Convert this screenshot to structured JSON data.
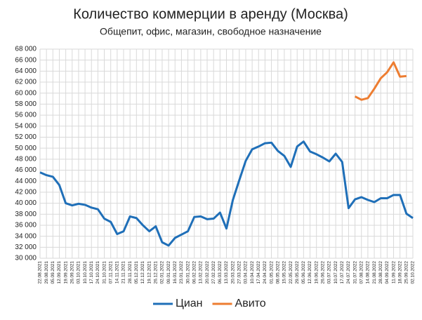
{
  "chart_data": {
    "type": "line",
    "title": "Количество коммерции в аренду (Москва)",
    "subtitle": "Общепит, офис, магазин, свободное назначение",
    "x": [
      "22.08.2021",
      "29.08.2021",
      "05.09.2021",
      "12.09.2021",
      "19.09.2021",
      "26.09.2021",
      "03.10.2021",
      "10.10.2021",
      "17.10.2021",
      "24.10.2021",
      "31.10.2021",
      "07.11.2021",
      "14.11.2021",
      "21.11.2021",
      "28.11.2021",
      "05.12.2021",
      "12.12.2021",
      "19.12.2021",
      "26.12.2021",
      "02.01.2022",
      "09.01.2022",
      "16.01.2022",
      "23.01.2022",
      "30.01.2022",
      "06.02.2022",
      "13.02.2022",
      "20.02.2022",
      "27.02.2022",
      "06.03.2022",
      "13.03.2022",
      "20.03.2022",
      "27.03.2022",
      "03.04.2022",
      "10.04.2022",
      "17.04.2022",
      "24.04.2022",
      "01.05.2022",
      "08.05.2022",
      "15.05.2022",
      "22.05.2022",
      "29.05.2022",
      "05.06.2022",
      "12.06.2022",
      "19.06.2022",
      "26.06.2022",
      "03.07.2022",
      "10.07.2022",
      "17.07.2022",
      "24.07.2022",
      "31.07.2022",
      "07.08.2022",
      "14.08.2022",
      "21.08.2022",
      "28.08.2022",
      "04.09.2022",
      "11.09.2022",
      "18.09.2022",
      "25.09.2022",
      "02.10.2022"
    ],
    "series": [
      {
        "name": "Циан",
        "color": "#1f6fb8",
        "values": [
          45600,
          45100,
          44800,
          43300,
          40000,
          39600,
          39900,
          39700,
          39200,
          38900,
          37200,
          36600,
          34400,
          34900,
          37600,
          37300,
          36000,
          34900,
          35800,
          32900,
          32300,
          33700,
          34300,
          34900,
          37500,
          37600,
          37100,
          37200,
          38300,
          35400,
          40600,
          44200,
          47700,
          49800,
          50300,
          50900,
          51000,
          49500,
          48600,
          46600,
          50300,
          51200,
          49400,
          48900,
          48300,
          47600,
          49000,
          47500,
          39100,
          40700,
          41100,
          40600,
          40200,
          40900,
          40900,
          41500,
          41500,
          38100,
          37300
        ]
      },
      {
        "name": "Авито",
        "color": "#ed7d31",
        "values": [
          null,
          null,
          null,
          null,
          null,
          null,
          null,
          null,
          null,
          null,
          null,
          null,
          null,
          null,
          null,
          null,
          null,
          null,
          null,
          null,
          null,
          null,
          null,
          null,
          null,
          null,
          null,
          null,
          null,
          null,
          null,
          null,
          null,
          null,
          null,
          null,
          null,
          null,
          null,
          null,
          null,
          null,
          null,
          null,
          null,
          null,
          null,
          null,
          null,
          59400,
          58800,
          59100,
          60800,
          62700,
          63800,
          65600,
          63000,
          63100,
          null
        ]
      }
    ],
    "ylim": [
      30000,
      68000
    ],
    "yticks": [
      {
        "value": 30000,
        "label": "30 000"
      },
      {
        "value": 32000,
        "label": "32 000"
      },
      {
        "value": 34000,
        "label": "34 000"
      },
      {
        "value": 36000,
        "label": "36 000"
      },
      {
        "value": 38000,
        "label": "38 000"
      },
      {
        "value": 40000,
        "label": "40 000"
      },
      {
        "value": 42000,
        "label": "42 000"
      },
      {
        "value": 44000,
        "label": "44 000"
      },
      {
        "value": 46000,
        "label": "46 000"
      },
      {
        "value": 48000,
        "label": "48 000"
      },
      {
        "value": 50000,
        "label": "50 000"
      },
      {
        "value": 52000,
        "label": "52 000"
      },
      {
        "value": 54000,
        "label": "54 000"
      },
      {
        "value": 56000,
        "label": "56 000"
      },
      {
        "value": 58000,
        "label": "58 000"
      },
      {
        "value": 60000,
        "label": "60 000"
      },
      {
        "value": 62000,
        "label": "62 000"
      },
      {
        "value": 64000,
        "label": "64 000"
      },
      {
        "value": 66000,
        "label": "66 000"
      },
      {
        "value": 68000,
        "label": "68 000"
      }
    ],
    "grid": true,
    "legend": "bottom"
  }
}
